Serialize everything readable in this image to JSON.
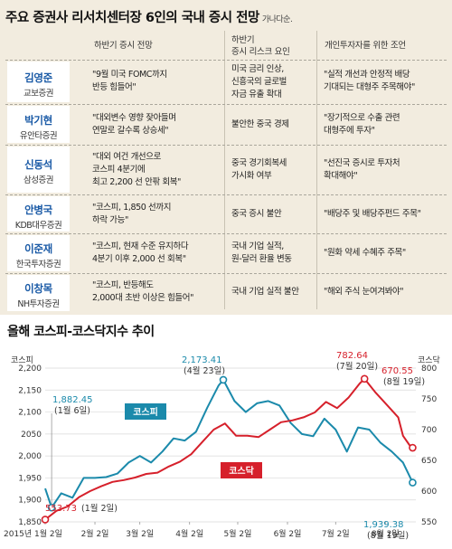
{
  "table": {
    "title": "주요 증권사 리서치센터장 6인의 국내 증시 전망",
    "title_suffix": "가나다순.",
    "headers": {
      "outlook": "하반기 증시 전망",
      "risk_line1": "하반기",
      "risk_line2": "증시 리스크 요인",
      "advice": "개인투자자를 위한 조언"
    },
    "rows": [
      {
        "name": "김영준",
        "firm": "교보증권",
        "outlook": [
          "\"9월 미국 FOMC까지",
          "반등 힘들어\""
        ],
        "risk": [
          "미국 금리 인상,",
          "신흥국의 글로벌",
          "자금 유출 확대"
        ],
        "advice": [
          "\"실적 개선과 안정적 배당",
          "기대되는 대형주 주목해야\""
        ]
      },
      {
        "name": "박기현",
        "firm": "유안타증권",
        "outlook": [
          "\"대외변수 영향 잦아들며",
          "연말로 갈수록 상승세\""
        ],
        "risk": [
          "불안한 중국 경제"
        ],
        "advice": [
          "\"장기적으로 수출 관련",
          "대형주에 투자\""
        ]
      },
      {
        "name": "신동석",
        "firm": "삼성증권",
        "outlook": [
          "\"대외 여건 개선으로",
          "코스피 4분기에",
          "최고 2,200 선 안팎 회복\""
        ],
        "risk": [
          "중국 경기회복세",
          "가시화 여부"
        ],
        "advice": [
          "\"선진국 증시로 투자처",
          "확대해야\""
        ]
      },
      {
        "name": "안병국",
        "firm": "KDB대우증권",
        "outlook": [
          "\"코스피, 1,850 선까지",
          "하락 가능\""
        ],
        "risk": [
          "중국 증시 불안"
        ],
        "advice": [
          "\"배당주 및 배당주펀드 주목\""
        ]
      },
      {
        "name": "이준재",
        "firm": "한국투자증권",
        "outlook": [
          "\"코스피, 현재 수준 유지하다",
          "4분기 이후 2,000 선 회복\""
        ],
        "risk": [
          "국내 기업 실적,",
          "원-달러 환율 변동"
        ],
        "advice": [
          "\"원화 약세 수혜주 주목\""
        ]
      },
      {
        "name": "이창목",
        "firm": "NH투자증권",
        "outlook": [
          "\"코스피, 반등해도",
          "2,000대 초반 이상은 힘들어\""
        ],
        "risk": [
          "국내 기업 실적 불안"
        ],
        "advice": [
          "\"해외 주식 눈여겨봐야\""
        ]
      }
    ]
  },
  "chart_data": {
    "type": "line",
    "title": "올해 코스피-코스닥지수 추이",
    "x_start": "2015-01-02",
    "x_ticks": [
      "2015년 1월 2일",
      "2월 2일",
      "3월 2일",
      "4월 2일",
      "5월 2일",
      "6월 2일",
      "7월 2일",
      "8월 2일"
    ],
    "y_left": {
      "label": "코스피",
      "ticks": [
        "1,850",
        "1,900",
        "1,950",
        "2,000",
        "2050",
        "2,100",
        "2,150",
        "2,200"
      ],
      "range": [
        1850,
        2200
      ]
    },
    "y_right": {
      "label": "코스닥",
      "ticks": [
        "550",
        "600",
        "650",
        "700",
        "750",
        "800"
      ],
      "range": [
        550,
        800
      ]
    },
    "series": [
      {
        "name": "코스피",
        "axis": "left",
        "color": "#1b8aab",
        "points": [
          [
            "2015-01-02",
            1926
          ],
          [
            "2015-01-06",
            1882.45
          ],
          [
            "2015-01-12",
            1915
          ],
          [
            "2015-01-19",
            1905
          ],
          [
            "2015-01-26",
            1950
          ],
          [
            "2015-02-02",
            1950
          ],
          [
            "2015-02-09",
            1952
          ],
          [
            "2015-02-16",
            1960
          ],
          [
            "2015-02-23",
            1985
          ],
          [
            "2015-03-02",
            2000
          ],
          [
            "2015-03-09",
            1985
          ],
          [
            "2015-03-16",
            2010
          ],
          [
            "2015-03-23",
            2040
          ],
          [
            "2015-03-30",
            2035
          ],
          [
            "2015-04-06",
            2055
          ],
          [
            "2015-04-13",
            2110
          ],
          [
            "2015-04-20",
            2160
          ],
          [
            "2015-04-23",
            2173.41
          ],
          [
            "2015-04-30",
            2125
          ],
          [
            "2015-05-07",
            2100
          ],
          [
            "2015-05-14",
            2120
          ],
          [
            "2015-05-21",
            2125
          ],
          [
            "2015-05-28",
            2115
          ],
          [
            "2015-06-04",
            2075
          ],
          [
            "2015-06-11",
            2050
          ],
          [
            "2015-06-18",
            2045
          ],
          [
            "2015-06-25",
            2085
          ],
          [
            "2015-07-02",
            2060
          ],
          [
            "2015-07-09",
            2010
          ],
          [
            "2015-07-16",
            2065
          ],
          [
            "2015-07-23",
            2060
          ],
          [
            "2015-07-30",
            2030
          ],
          [
            "2015-08-06",
            2010
          ],
          [
            "2015-08-13",
            1985
          ],
          [
            "2015-08-19",
            1939.38
          ]
        ]
      },
      {
        "name": "코스닥",
        "axis": "right",
        "color": "#d6202b",
        "points": [
          [
            "2015-01-02",
            553.73
          ],
          [
            "2015-01-09",
            568
          ],
          [
            "2015-01-16",
            575
          ],
          [
            "2015-01-23",
            590
          ],
          [
            "2015-01-30",
            600
          ],
          [
            "2015-02-06",
            608
          ],
          [
            "2015-02-13",
            615
          ],
          [
            "2015-02-20",
            618
          ],
          [
            "2015-02-27",
            622
          ],
          [
            "2015-03-06",
            628
          ],
          [
            "2015-03-13",
            630
          ],
          [
            "2015-03-20",
            640
          ],
          [
            "2015-03-27",
            648
          ],
          [
            "2015-04-03",
            660
          ],
          [
            "2015-04-10",
            680
          ],
          [
            "2015-04-17",
            700
          ],
          [
            "2015-04-24",
            710
          ],
          [
            "2015-05-01",
            690
          ],
          [
            "2015-05-08",
            690
          ],
          [
            "2015-05-15",
            688
          ],
          [
            "2015-05-22",
            700
          ],
          [
            "2015-05-29",
            712
          ],
          [
            "2015-06-05",
            715
          ],
          [
            "2015-06-12",
            720
          ],
          [
            "2015-06-19",
            728
          ],
          [
            "2015-06-26",
            745
          ],
          [
            "2015-07-03",
            735
          ],
          [
            "2015-07-10",
            752
          ],
          [
            "2015-07-17",
            775
          ],
          [
            "2015-07-20",
            782.64
          ],
          [
            "2015-07-27",
            760
          ],
          [
            "2015-08-03",
            740
          ],
          [
            "2015-08-10",
            720
          ],
          [
            "2015-08-13",
            690
          ],
          [
            "2015-08-17",
            675
          ],
          [
            "2015-08-19",
            670.55
          ]
        ]
      }
    ],
    "annotations": [
      {
        "series": "코스피",
        "value": "1,882.45",
        "date": "(1월 6일)"
      },
      {
        "series": "코스피",
        "value": "2,173.41",
        "date": "(4월 23일)"
      },
      {
        "series": "코스피",
        "value": "1,939.38",
        "date": "(8월 19일)"
      },
      {
        "series": "코스닥",
        "value": "553.73",
        "date": "(1월 2일)"
      },
      {
        "series": "코스닥",
        "value": "782.64",
        "date": "(7월 20일)"
      },
      {
        "series": "코스닥",
        "value": "670.55",
        "date": "(8월 19일)"
      }
    ]
  },
  "colors": {
    "kospi": "#1b8aab",
    "kosdaq": "#d6202b",
    "name_blue": "#1a5aa6",
    "panel_bg": "#f2ecdf"
  }
}
